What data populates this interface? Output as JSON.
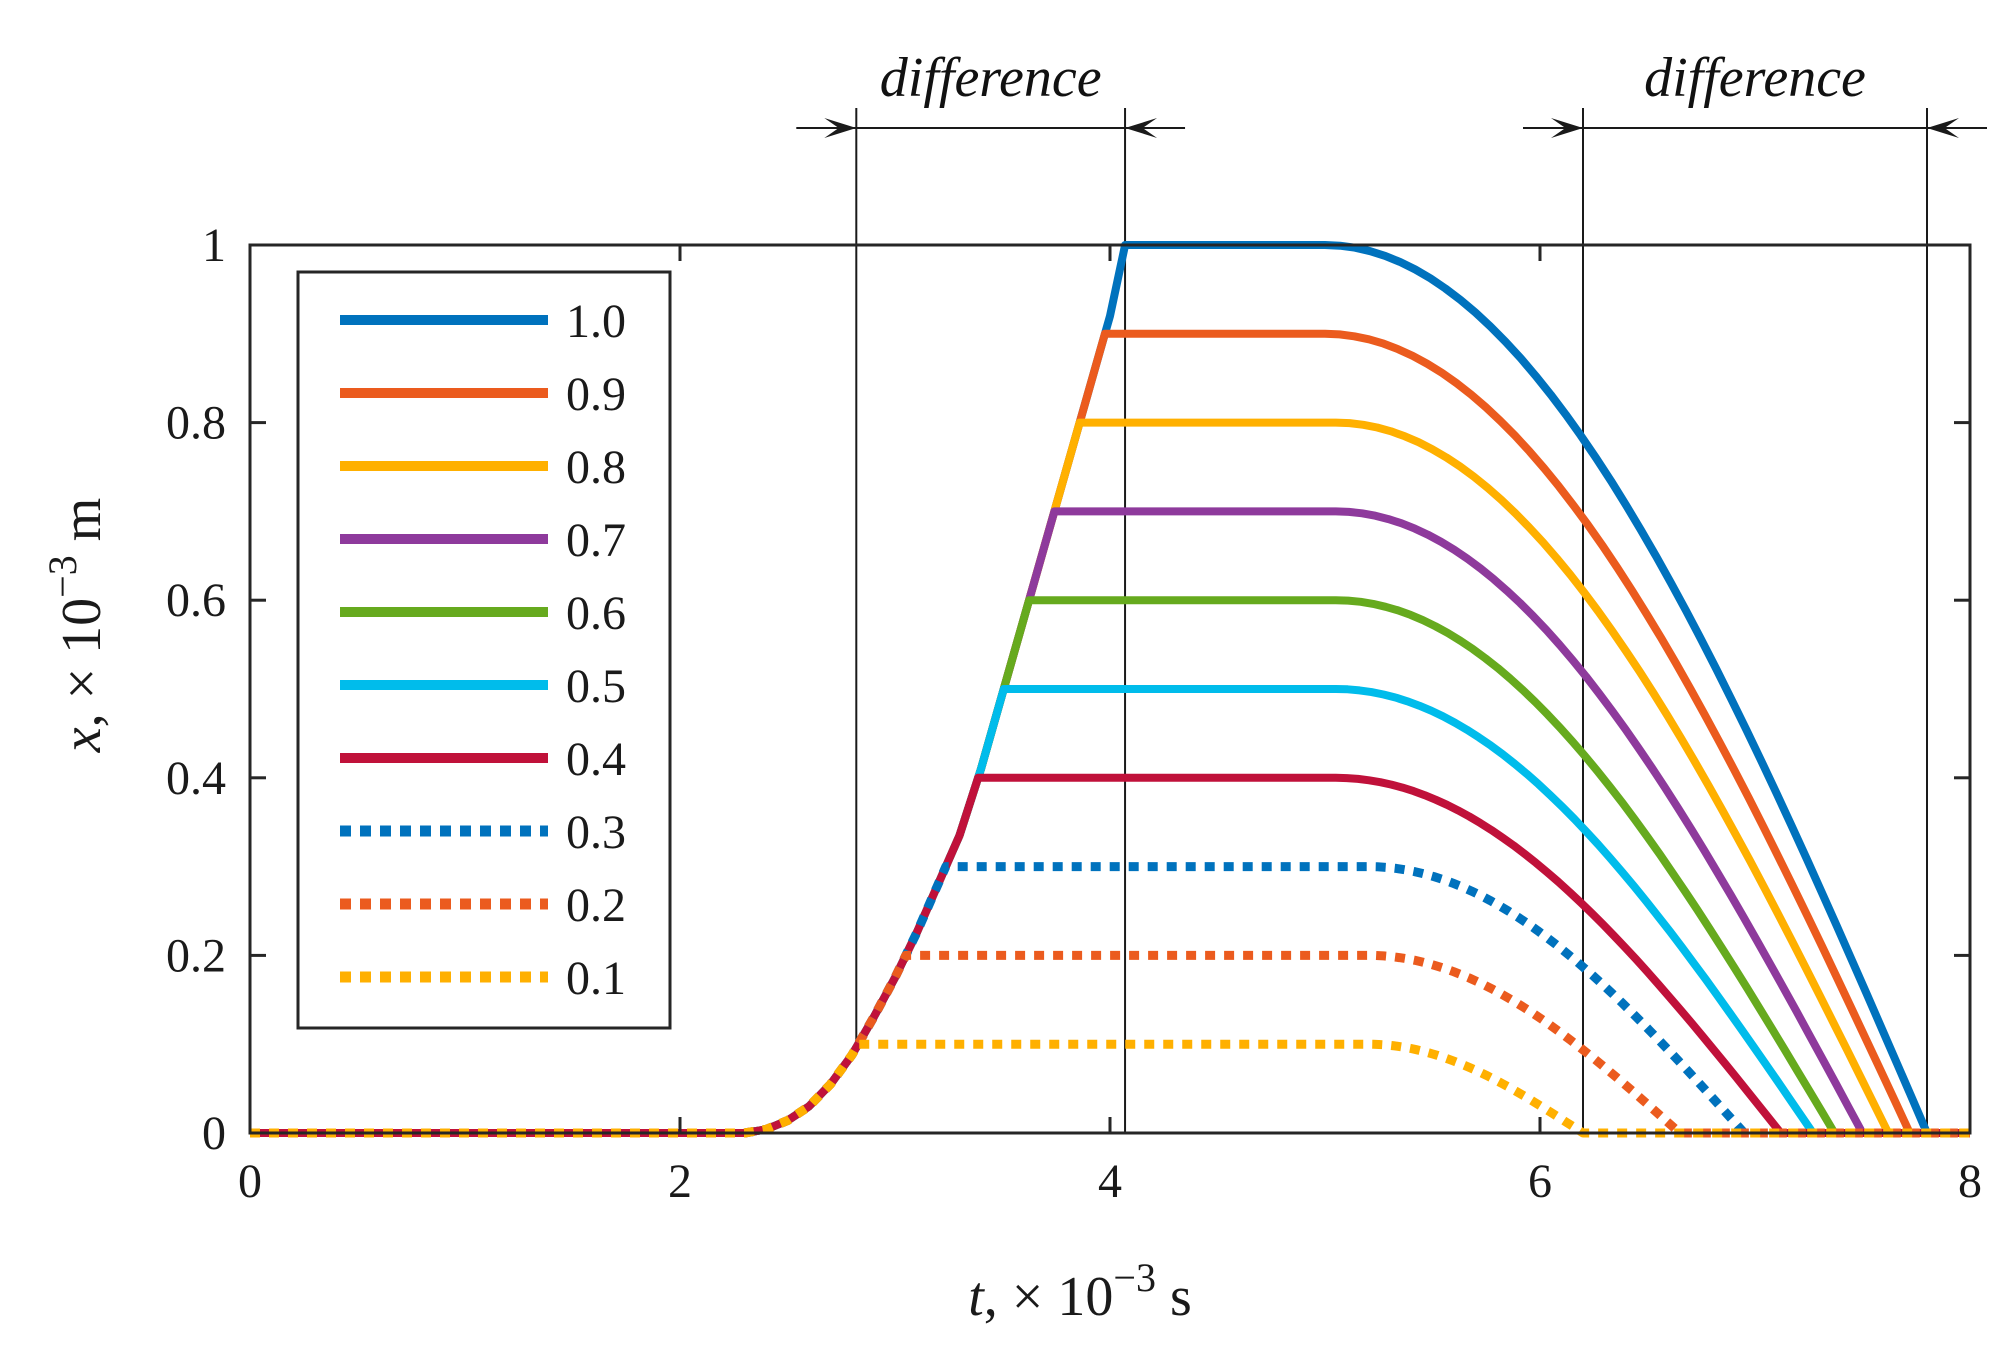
{
  "chart_data": {
    "type": "line",
    "title": "",
    "xlabel": {
      "var": "t",
      "rest": "× 10",
      "exp": "−3",
      "unit": "s"
    },
    "ylabel": {
      "var": "x",
      "rest": "× 10",
      "exp": "−3",
      "unit": "m"
    },
    "xlim": [
      0,
      8
    ],
    "ylim": [
      0,
      1
    ],
    "xticks": [
      0,
      2,
      4,
      6,
      8
    ],
    "yticks": [
      0,
      0.2,
      0.4,
      0.6,
      0.8,
      1
    ],
    "xtick_labels": [
      "0",
      "2",
      "4",
      "6",
      "8"
    ],
    "ytick_labels": [
      "0",
      "0.2",
      "0.4",
      "0.6",
      "0.8",
      "1"
    ],
    "grid": false,
    "legend_position": "top-left",
    "rise_curve": {
      "t": [
        0,
        2.3,
        2.4,
        2.5,
        2.6,
        2.7,
        2.8,
        2.9,
        3.0,
        3.1,
        3.2,
        3.3,
        3.4,
        3.5,
        3.6,
        3.7,
        3.8,
        3.9,
        4.0,
        4.07
      ],
      "x": [
        0,
        0,
        0.004,
        0.014,
        0.03,
        0.055,
        0.088,
        0.13,
        0.175,
        0.225,
        0.28,
        0.335,
        0.41,
        0.495,
        0.58,
        0.665,
        0.75,
        0.835,
        0.92,
        1.0
      ]
    },
    "series": [
      {
        "name": "1.0",
        "amplitude": 1.0,
        "color": "#0072BD",
        "style": "solid",
        "t_top": 4.07,
        "t_fall": 5.0,
        "t_end": 7.8
      },
      {
        "name": "0.9",
        "amplitude": 0.9,
        "color": "#EB5B1E",
        "style": "solid",
        "t_top": 3.98,
        "t_fall": 5.0,
        "t_end": 7.72
      },
      {
        "name": "0.8",
        "amplitude": 0.8,
        "color": "#FFB000",
        "style": "solid",
        "t_top": 3.88,
        "t_fall": 5.05,
        "t_end": 7.62
      },
      {
        "name": "0.7",
        "amplitude": 0.7,
        "color": "#8E3A9C",
        "style": "solid",
        "t_top": 3.78,
        "t_fall": 5.05,
        "t_end": 7.5
      },
      {
        "name": "0.6",
        "amplitude": 0.6,
        "color": "#66AA1E",
        "style": "solid",
        "t_top": 3.68,
        "t_fall": 5.05,
        "t_end": 7.37
      },
      {
        "name": "0.5",
        "amplitude": 0.5,
        "color": "#00BCEB",
        "style": "solid",
        "t_top": 3.55,
        "t_fall": 5.05,
        "t_end": 7.27
      },
      {
        "name": "0.4",
        "amplitude": 0.4,
        "color": "#C0113A",
        "style": "solid",
        "t_top": 3.42,
        "t_fall": 5.05,
        "t_end": 7.12
      },
      {
        "name": "0.3",
        "amplitude": 0.3,
        "color": "#0072BD",
        "style": "dotted",
        "t_top": 3.3,
        "t_fall": 5.2,
        "t_end": 6.95
      },
      {
        "name": "0.2",
        "amplitude": 0.2,
        "color": "#EB5B1E",
        "style": "dotted",
        "t_top": 3.1,
        "t_fall": 5.2,
        "t_end": 6.65
      },
      {
        "name": "0.1",
        "amplitude": 0.1,
        "color": "#FFB000",
        "style": "dotted",
        "t_top": 2.85,
        "t_fall": 5.2,
        "t_end": 6.2
      }
    ],
    "annotations": [
      {
        "text": "difference",
        "t_start": 2.82,
        "t_end": 4.07
      },
      {
        "text": "difference",
        "t_start": 6.2,
        "t_end": 7.8
      }
    ]
  }
}
